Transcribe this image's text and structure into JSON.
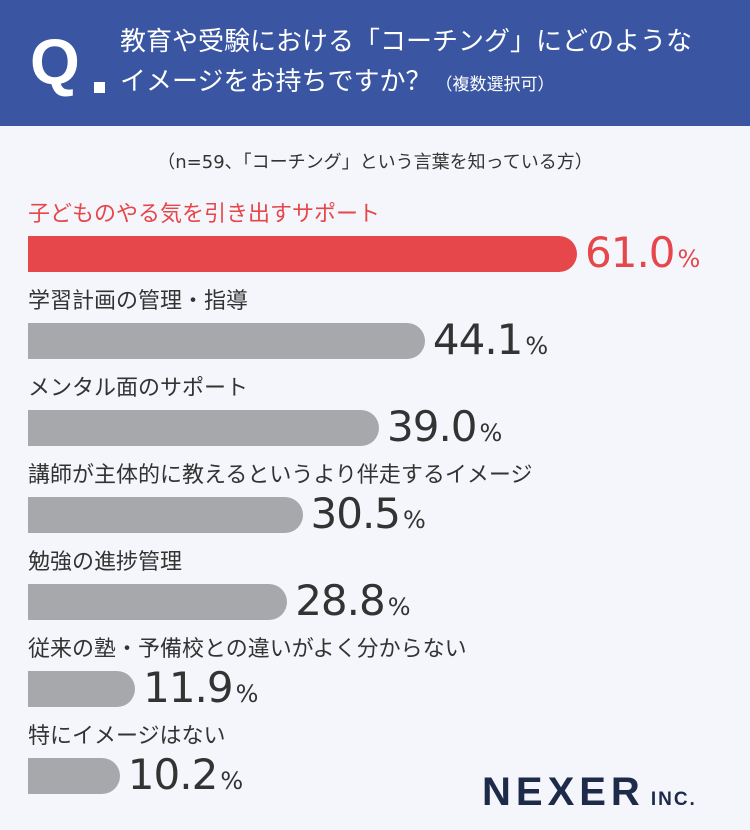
{
  "header": {
    "q_mark": "Q",
    "line1": "教育や受験における「コーチング」にどのような",
    "line2": "イメージをお持ちですか？",
    "sub": "（複数選択可）"
  },
  "note": "（n=59、「コーチング」という言葉を知っている方）",
  "logo": {
    "main": "NEXER",
    "suffix": "INC."
  },
  "colors": {
    "header": "#3a56a3",
    "highlight": "#e5474a",
    "bar": "#a7a8ac",
    "text": "#333333"
  },
  "chart_data": {
    "type": "bar",
    "orientation": "horizontal",
    "unit": "%",
    "categories": [
      "子どものやる気を引き出すサポート",
      "学習計画の管理・指導",
      "メンタル面のサポート",
      "講師が主体的に教えるというより伴走するイメージ",
      "勉強の進捗管理",
      "従来の塾・予備校との違いがよく分からない",
      "特にイメージはない"
    ],
    "values": [
      61.0,
      44.1,
      39.0,
      30.5,
      28.8,
      11.9,
      10.2
    ],
    "value_labels": [
      "61.0",
      "44.1",
      "39.0",
      "30.5",
      "28.8",
      "11.9",
      "10.2"
    ],
    "highlight_index": 0,
    "xlim": [
      0,
      100
    ]
  }
}
